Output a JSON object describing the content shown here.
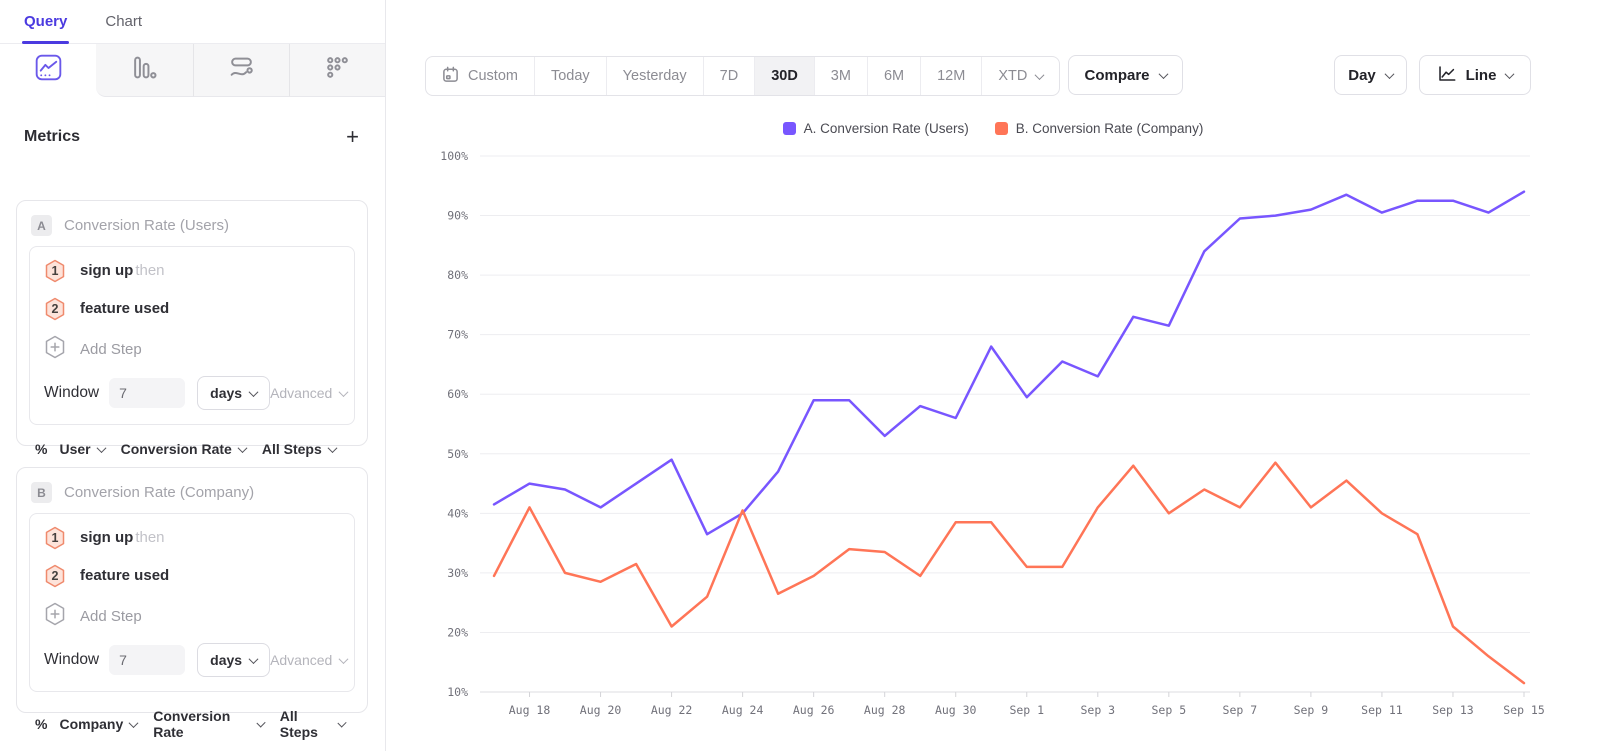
{
  "sidebar": {
    "tabs": [
      {
        "label": "Query"
      },
      {
        "label": "Chart"
      }
    ],
    "report_tabs": [
      "insights-icon",
      "funnels-icon",
      "flows-icon",
      "retention-icon"
    ],
    "metrics": {
      "title": "Metrics",
      "add_label": "+",
      "cards": [
        {
          "badge": "A",
          "title": "Conversion Rate (Users)",
          "steps": [
            {
              "num": "1",
              "label": "sign up",
              "suffix": "then"
            },
            {
              "num": "2",
              "label": "feature used",
              "suffix": ""
            }
          ],
          "add_step_label": "Add Step",
          "window": {
            "label": "Window",
            "value": "7",
            "unit": "days",
            "advanced_label": "Advanced"
          },
          "measurement": {
            "symbol": "%",
            "entity": "User",
            "metric": "Conversion Rate",
            "scope": "All Steps"
          }
        },
        {
          "badge": "B",
          "title": "Conversion Rate (Company)",
          "steps": [
            {
              "num": "1",
              "label": "sign up",
              "suffix": "then"
            },
            {
              "num": "2",
              "label": "feature used",
              "suffix": ""
            }
          ],
          "add_step_label": "Add Step",
          "window": {
            "label": "Window",
            "value": "7",
            "unit": "days",
            "advanced_label": "Advanced"
          },
          "measurement": {
            "symbol": "%",
            "entity": "Company",
            "metric": "Conversion Rate",
            "scope": "All Steps"
          }
        }
      ]
    }
  },
  "toolbar": {
    "date_ranges": [
      {
        "label": "Custom"
      },
      {
        "label": "Today"
      },
      {
        "label": "Yesterday"
      },
      {
        "label": "7D"
      },
      {
        "label": "30D"
      },
      {
        "label": "3M"
      },
      {
        "label": "6M"
      },
      {
        "label": "12M"
      },
      {
        "label": "XTD"
      }
    ],
    "active_range": "30D",
    "compare_label": "Compare",
    "granularity_label": "Day",
    "chart_type_label": "Line"
  },
  "legend": [
    {
      "label": "A. Conversion Rate (Users)",
      "color": "#7856ff"
    },
    {
      "label": "B. Conversion Rate (Company)",
      "color": "#ff7557"
    }
  ],
  "chart_data": {
    "type": "line",
    "x": [
      "Aug 17",
      "Aug 18",
      "Aug 19",
      "Aug 20",
      "Aug 21",
      "Aug 22",
      "Aug 23",
      "Aug 24",
      "Aug 25",
      "Aug 26",
      "Aug 27",
      "Aug 28",
      "Aug 29",
      "Aug 30",
      "Aug 31",
      "Sep 1",
      "Sep 2",
      "Sep 3",
      "Sep 4",
      "Sep 5",
      "Sep 6",
      "Sep 7",
      "Sep 8",
      "Sep 9",
      "Sep 10",
      "Sep 11",
      "Sep 12",
      "Sep 13",
      "Sep 14",
      "Sep 15"
    ],
    "x_labeled_every": 2,
    "x_first_labeled_index": 1,
    "series": [
      {
        "name": "A. Conversion Rate (Users)",
        "color": "#7856ff",
        "values": [
          41.5,
          45,
          44,
          41,
          45,
          49,
          36.5,
          40,
          47,
          59,
          59,
          53,
          58,
          56,
          68,
          59.5,
          65.5,
          63,
          73,
          71.5,
          84,
          89.5,
          90,
          91,
          93.5,
          90.5,
          92.5,
          92.5,
          90.5,
          94
        ]
      },
      {
        "name": "B. Conversion Rate (Company)",
        "color": "#ff7557",
        "values": [
          29.5,
          41,
          30,
          28.5,
          31.5,
          21,
          26,
          40.5,
          26.5,
          29.5,
          34,
          33.5,
          29.5,
          38.5,
          38.5,
          31,
          31,
          41,
          48,
          40,
          44,
          41,
          48.5,
          41,
          45.5,
          40,
          36.5,
          21,
          16,
          11.5
        ]
      }
    ],
    "ylim": [
      10,
      100
    ],
    "y_tick_step": 10,
    "y_unit": "%",
    "grid": true,
    "legend_position": "top-center"
  }
}
